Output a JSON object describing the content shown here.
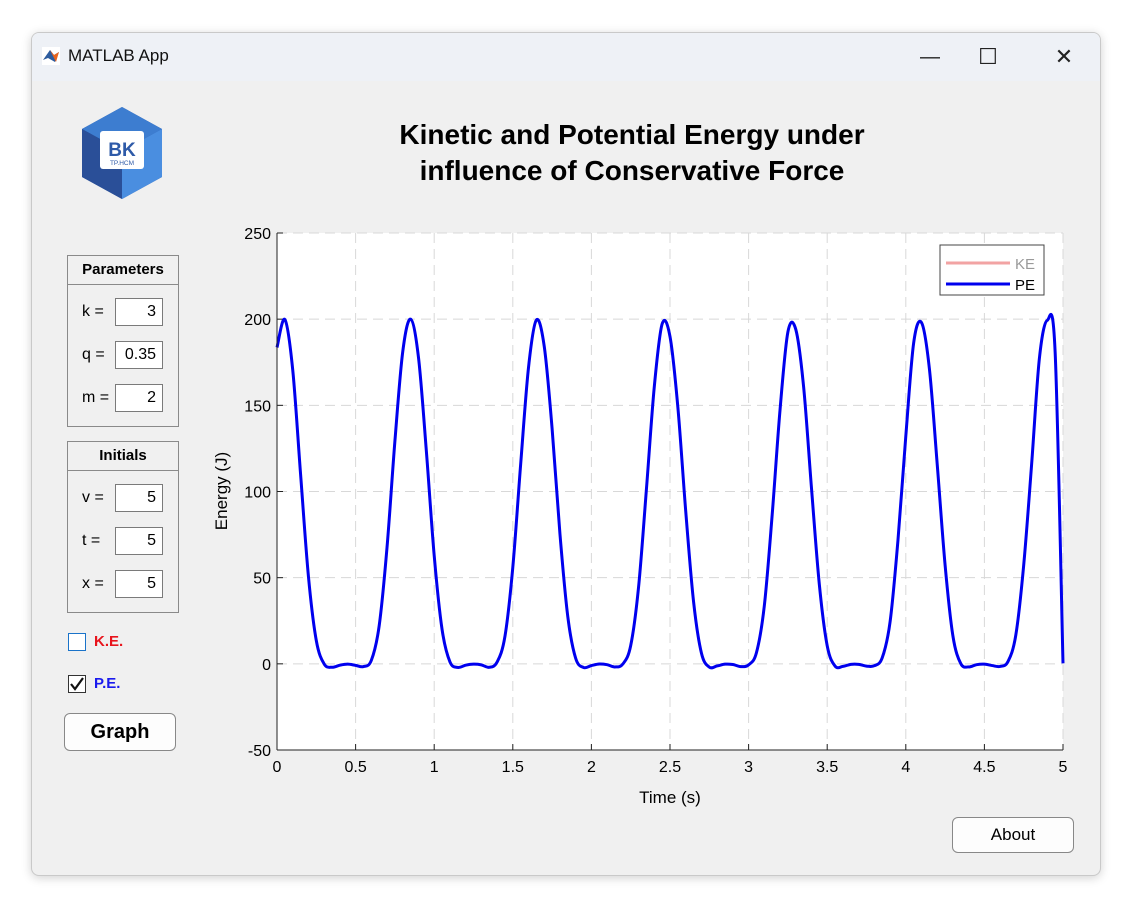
{
  "window": {
    "title": "MATLAB App",
    "minimize_glyph": "—",
    "maximize_glyph": "☐",
    "close_glyph": "✕"
  },
  "logo": {
    "text": "BK",
    "subtext": "TP.HCM"
  },
  "main_title_line1": "Kinetic and Potential Energy under",
  "main_title_line2": "influence of Conservative Force",
  "parameters": {
    "header": "Parameters",
    "rows": [
      {
        "label": "k =",
        "value": "3"
      },
      {
        "label": "q =",
        "value": "0.35"
      },
      {
        "label": "m =",
        "value": "2"
      }
    ]
  },
  "initials": {
    "header": "Initials",
    "rows": [
      {
        "label": "v =",
        "value": "5"
      },
      {
        "label": "t =",
        "value": "5"
      },
      {
        "label": "x =",
        "value": "5"
      }
    ]
  },
  "checkboxes": {
    "ke": {
      "label": "K.E.",
      "checked": false,
      "color": "#e8141c"
    },
    "pe": {
      "label": "P.E.",
      "checked": true,
      "color": "#1a1aee"
    }
  },
  "buttons": {
    "graph": "Graph",
    "about": "About"
  },
  "chart_data": {
    "type": "line",
    "title": "",
    "xlabel": "Time (s)",
    "ylabel": "Energy (J)",
    "xlim": [
      0,
      5
    ],
    "ylim": [
      -50,
      250
    ],
    "x_ticks": [
      "0",
      "0.5",
      "1",
      "1.5",
      "2",
      "2.5",
      "3",
      "3.5",
      "4",
      "4.5",
      "5"
    ],
    "y_ticks": [
      "-50",
      "0",
      "50",
      "100",
      "150",
      "200",
      "250"
    ],
    "grid": true,
    "legend_position": "top-right",
    "series": [
      {
        "name": "KE",
        "color": "#f2a3a3",
        "values": []
      },
      {
        "name": "PE",
        "color": "#0000ee",
        "x": [
          0,
          0.05,
          0.1,
          0.15,
          0.2,
          0.25,
          0.3,
          0.35,
          0.4,
          0.45,
          0.5,
          0.55,
          0.6,
          0.65,
          0.7,
          0.75,
          0.8,
          0.85,
          0.9,
          0.95,
          1.0,
          1.05,
          1.1,
          1.15,
          1.2,
          1.25,
          1.3,
          1.35,
          1.4,
          1.45,
          1.5,
          1.55,
          1.6,
          1.65,
          1.7,
          1.75,
          1.8,
          1.85,
          1.9,
          1.95,
          2.0,
          2.05,
          2.1,
          2.15,
          2.2,
          2.25,
          2.3,
          2.35,
          2.4,
          2.45,
          2.5,
          2.55,
          2.6,
          2.65,
          2.7,
          2.75,
          2.8,
          2.85,
          2.9,
          2.95,
          3.0,
          3.05,
          3.1,
          3.15,
          3.2,
          3.25,
          3.3,
          3.35,
          3.4,
          3.45,
          3.5,
          3.55,
          3.6,
          3.65,
          3.7,
          3.75,
          3.8,
          3.85,
          3.9,
          3.95,
          4.0,
          4.05,
          4.1,
          4.15,
          4.2,
          4.25,
          4.3,
          4.35,
          4.4,
          4.45,
          4.5,
          4.55,
          4.6,
          4.65,
          4.7,
          4.75,
          4.8,
          4.85,
          4.9,
          4.95,
          5.0
        ],
        "values": [
          183.6,
          199.8,
          170.6,
          110.0,
          50.7,
          13.5,
          -0.1,
          -2.0,
          -0.8,
          -0.2,
          -0.9,
          -1.6,
          2.0,
          22.1,
          67.7,
          129.2,
          181.2,
          200.0,
          177.8,
          123.6,
          62.8,
          20.0,
          1.2,
          -2.1,
          -0.8,
          -0.2,
          -0.6,
          -2.0,
          1.0,
          15.9,
          56.0,
          115.8,
          172.0,
          199.5,
          184.2,
          136.5,
          75.3,
          27.3,
          3.2,
          -2.1,
          -1.0,
          -0.1,
          -0.5,
          -1.8,
          -0.1,
          10.6,
          44.5,
          101.3,
          160.7,
          197.2,
          189.9,
          148.9,
          88.6,
          36.0,
          6.2,
          -1.9,
          -1.2,
          -0.2,
          -0.4,
          -1.6,
          -0.6,
          6.5,
          33.7,
          86.5,
          147.4,
          192.6,
          194.1,
          160.7,
          102.0,
          46.0,
          10.5,
          -1.3,
          -1.5,
          -0.3,
          -0.3,
          -1.3,
          -1.1,
          3.5,
          24.4,
          71.6,
          132.1,
          186.2,
          198.0,
          171.3,
          115.6,
          57.3,
          16.0,
          0.1,
          -1.8,
          -0.5,
          -0.2,
          -1.0,
          -1.5,
          1.3,
          16.8,
          57.3,
          115.3,
          177.4,
          199.3,
          180.8,
          0.3
        ]
      }
    ]
  }
}
